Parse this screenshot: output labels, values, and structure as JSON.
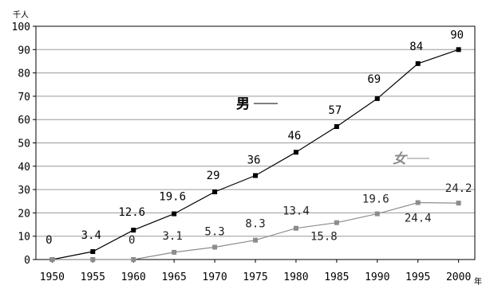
{
  "chart_data": {
    "type": "line",
    "title": "",
    "xlabel": "",
    "ylabel": "",
    "y_unit": "千人",
    "x_unit": "年",
    "ylim": [
      0,
      100
    ],
    "yticks": [
      0,
      10,
      20,
      30,
      40,
      50,
      60,
      70,
      80,
      90,
      100
    ],
    "x": [
      1950,
      1955,
      1960,
      1965,
      1970,
      1975,
      1980,
      1985,
      1990,
      1995,
      2000
    ],
    "x_tick_labels": [
      "1950",
      "1955",
      "1960",
      "1965",
      "1970",
      "1975",
      "1980",
      "1985",
      "1990",
      "1995",
      "2000"
    ],
    "grid": "horizontal",
    "series": [
      {
        "name": "男",
        "color": "#000000",
        "label_color": "#000000",
        "marker": "square",
        "x": [
          1950,
          1955,
          1960,
          1965,
          1970,
          1975,
          1980,
          1985,
          1990,
          1995,
          2000
        ],
        "values": [
          0,
          3.4,
          12.6,
          19.6,
          29,
          36,
          46,
          57,
          69,
          84,
          90
        ],
        "data_labels": [
          "0",
          "3.4",
          "12.6",
          "19.6",
          "29",
          "36",
          "46",
          "57",
          "69",
          "84",
          "90"
        ]
      },
      {
        "name": "女",
        "color": "#8c8c8c",
        "label_color": "#222222",
        "marker": "square",
        "x": [
          1950,
          1955,
          1960,
          1965,
          1970,
          1975,
          1980,
          1985,
          1990,
          1995,
          2000
        ],
        "values": [
          0,
          0,
          0,
          3.1,
          5.3,
          8.3,
          13.4,
          15.8,
          19.6,
          24.4,
          24.2
        ],
        "data_labels": [
          "",
          "",
          "0",
          "3.1",
          "5.3",
          "8.3",
          "13.4",
          "15.8",
          "19.6",
          "24.4",
          "24.2"
        ]
      }
    ]
  }
}
